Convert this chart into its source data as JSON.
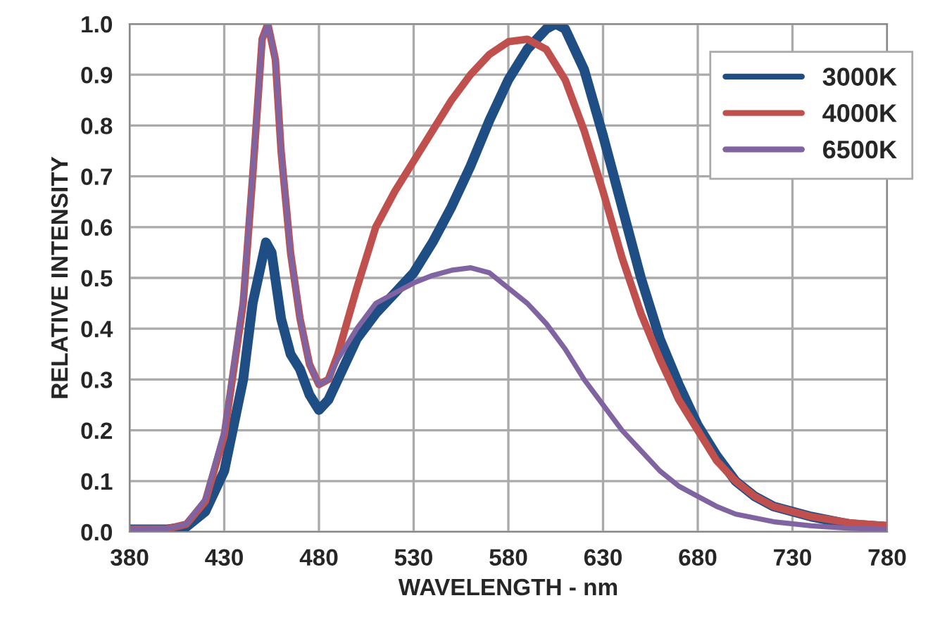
{
  "chart_data": {
    "type": "line",
    "xlabel": "WAVELENGTH - nm",
    "ylabel": "RELATIVE INTENSITY",
    "xlim": [
      380,
      780
    ],
    "xticks": [
      380,
      430,
      480,
      530,
      580,
      630,
      680,
      730,
      780
    ],
    "ylim": [
      0,
      1
    ],
    "yticks": [
      {
        "value": 0,
        "label": "0.0"
      },
      {
        "value": 0.1,
        "label": "0.1"
      },
      {
        "value": 0.2,
        "label": "0.2"
      },
      {
        "value": 0.3,
        "label": "0.3"
      },
      {
        "value": 0.4,
        "label": "0.4"
      },
      {
        "value": 0.5,
        "label": "0.5"
      },
      {
        "value": 0.6,
        "label": "0.6"
      },
      {
        "value": 0.7,
        "label": "0.7"
      },
      {
        "value": 0.8,
        "label": "0.8"
      },
      {
        "value": 0.9,
        "label": "0.9"
      },
      {
        "value": 1,
        "label": "1.0"
      }
    ],
    "grid": true,
    "legend": "top right",
    "marker": "none",
    "line_style": "solid",
    "series": [
      {
        "name": "3000K",
        "color": "#1f4e84",
        "x": [
          380,
          400,
          410,
          420,
          430,
          440,
          445,
          452,
          455,
          460,
          465,
          470,
          475,
          480,
          485,
          490,
          500,
          510,
          520,
          530,
          540,
          550,
          560,
          570,
          580,
          590,
          600,
          605,
          610,
          620,
          630,
          640,
          650,
          660,
          670,
          680,
          690,
          700,
          710,
          720,
          740,
          760,
          780
        ],
        "values": [
          0.005,
          0.005,
          0.01,
          0.04,
          0.12,
          0.3,
          0.45,
          0.57,
          0.55,
          0.42,
          0.35,
          0.32,
          0.27,
          0.24,
          0.26,
          0.3,
          0.38,
          0.43,
          0.47,
          0.51,
          0.57,
          0.64,
          0.72,
          0.81,
          0.89,
          0.95,
          0.99,
          1.0,
          0.99,
          0.91,
          0.78,
          0.64,
          0.5,
          0.38,
          0.29,
          0.21,
          0.15,
          0.1,
          0.07,
          0.05,
          0.03,
          0.015,
          0.01
        ]
      },
      {
        "name": "4000K",
        "color": "#c0504d",
        "x": [
          380,
          400,
          410,
          420,
          430,
          440,
          445,
          450,
          453,
          457,
          460,
          465,
          470,
          475,
          480,
          485,
          490,
          500,
          510,
          520,
          530,
          540,
          550,
          560,
          570,
          580,
          590,
          600,
          610,
          620,
          630,
          640,
          650,
          660,
          670,
          680,
          690,
          700,
          710,
          720,
          740,
          760,
          780
        ],
        "values": [
          0.005,
          0.006,
          0.015,
          0.06,
          0.19,
          0.45,
          0.7,
          0.97,
          1.0,
          0.93,
          0.75,
          0.55,
          0.42,
          0.33,
          0.29,
          0.3,
          0.35,
          0.48,
          0.6,
          0.67,
          0.73,
          0.79,
          0.85,
          0.9,
          0.94,
          0.965,
          0.97,
          0.95,
          0.89,
          0.79,
          0.67,
          0.54,
          0.43,
          0.34,
          0.26,
          0.2,
          0.14,
          0.1,
          0.07,
          0.05,
          0.03,
          0.018,
          0.012
        ]
      },
      {
        "name": "6500K",
        "color": "#8064a2",
        "x": [
          380,
          400,
          410,
          420,
          430,
          440,
          445,
          450,
          453,
          457,
          460,
          465,
          470,
          475,
          480,
          485,
          490,
          500,
          510,
          520,
          530,
          540,
          550,
          560,
          570,
          580,
          590,
          600,
          610,
          620,
          630,
          640,
          650,
          660,
          670,
          680,
          690,
          700,
          720,
          740,
          760,
          780
        ],
        "values": [
          0.005,
          0.006,
          0.016,
          0.065,
          0.2,
          0.46,
          0.71,
          0.97,
          1.0,
          0.93,
          0.75,
          0.55,
          0.42,
          0.33,
          0.29,
          0.3,
          0.34,
          0.4,
          0.45,
          0.47,
          0.49,
          0.505,
          0.515,
          0.52,
          0.51,
          0.48,
          0.45,
          0.41,
          0.36,
          0.3,
          0.25,
          0.2,
          0.16,
          0.12,
          0.09,
          0.07,
          0.05,
          0.035,
          0.02,
          0.012,
          0.007,
          0.005
        ]
      }
    ]
  }
}
